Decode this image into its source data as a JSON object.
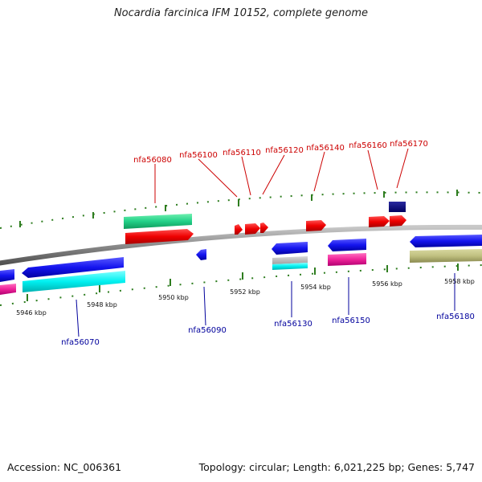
{
  "title": "Nocardia farcinica IFM 10152, complete genome",
  "footer": {
    "accession": "Accession: NC_006361",
    "stats": "Topology: circular; Length: 6,021,225 bp; Genes: 5,747"
  },
  "kbp_labels": [
    "5946 kbp",
    "5948 kbp",
    "5950 kbp",
    "5952 kbp",
    "5954 kbp",
    "5956 kbp",
    "5958 kbp"
  ],
  "forward_gene_labels": [
    "nfa56080",
    "nfa56100",
    "nfa56110",
    "nfa56120",
    "nfa56140",
    "nfa56160",
    "nfa56170"
  ],
  "reverse_gene_labels": [
    "nfa56070",
    "nfa56090",
    "nfa56130",
    "nfa56150",
    "nfa56180"
  ],
  "colors": {
    "forward_label": "#cc0000",
    "reverse_label": "#00009c",
    "tick": "#2e7d1f",
    "backbone": "#8a8a8a"
  }
}
